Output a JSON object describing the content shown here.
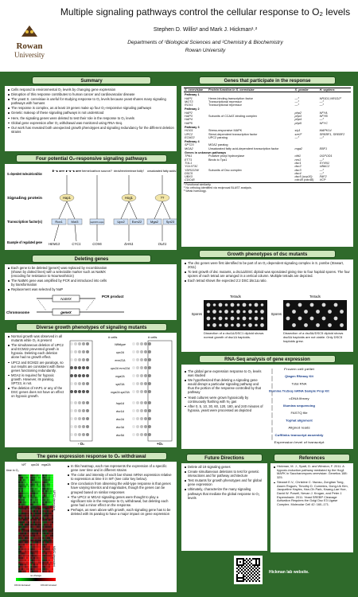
{
  "header": {
    "title": "Multiple signaling pathways control the cellular response to O₂ levels",
    "authors": "Stephen D. Willis² and Mark J. Hickman¹˒²",
    "affiliations": "Departments of ¹Biological Sciences and ²Chemistry & Biochemistry",
    "university": "Rowan University",
    "logo_top": "Rowan",
    "logo_bottom": "University"
  },
  "summary": {
    "heading": "Summary",
    "bullets": [
      "Cells respond to environmental O₂ levels by changing gene expression",
      "Disruption of this response contributes to human cancer and cardiovascular disease",
      "The yeast S. cerevisiae is useful for studying response to O₂ levels because yeast shares many signaling pathways with humans",
      "The response is complex, as at least 19 genes make up four O₂-responsive signaling pathways",
      "Genetic makeup of these signaling pathways is not understood",
      "Here, the signaling genes were deleted to test their role in the response to O₂ levels",
      "Global gene expression after O₂ withdrawal was monitored using RNA-Seq.",
      "Our work has revealed both unexpected growth phenotypes and signaling redundancy for the different deletion strains"
    ]
  },
  "pathways": {
    "heading": "Four potential O₂-responsive signaling pathways",
    "row_labels": [
      "O₂-dependent molecule/condition",
      "Signaling protein",
      "Transcription factor(s)",
      "Example of regulated gene"
    ],
    "molecules": [
      "heme",
      "heme/carbon source?",
      "sterols/heme/membrane fluidity?",
      "unsaturated fatty acids?"
    ],
    "signaling": [
      "Hap1",
      "Hog1",
      "??"
    ],
    "factors": [
      "Rox1",
      "Mot3",
      "Hap2/3/4/5 complex",
      "Upc2",
      "Ecm22",
      "Mga2",
      "Spt23"
    ],
    "genes": [
      "HEM13",
      "CYC1",
      "COX6",
      "DAN1",
      "OLE1"
    ]
  },
  "deleting": {
    "heading": "Deleting genes",
    "bullets": [
      "Each gene to be deleted (geneX) was replaced by recombination (shown by dotted lines) with a selectable marker such as NatMX (encoding for resistance to Nourseothricin)",
      "The NatMX gene was amplified by PCR and introduced into cells by transformation",
      "Replacement was selected by Natᴿ"
    ],
    "marker": "NatMX",
    "pcr": "PCR product",
    "chromosome": "Chromosome",
    "gene": "geneX"
  },
  "growth": {
    "heading": "Diverse growth phenotypes of signaling mutants",
    "bullets": [
      "Normal growth was observed in all mutants while O₂ is present",
      "The simultaneous deletion of UPC2 and ECM22 prevented growth in hypoxia. Deleting each deletion alone had no growth effect.",
      "UPC2 and ECM22 are paralogs, so our results are consistent with these genes functioning redundantly.",
      "MGA2 is required for hypoxic growth. However, its paralog, SPT23, is not.",
      "The deletion of HAP1 or any of the DSC genes does not have an effect on hypoxic growth."
    ],
    "cells_label": "# cells",
    "strains": [
      "Wildtype",
      "upc2Δ",
      "ecm22Δ",
      "upc2Δ ecm22Δ",
      "mga2Δ",
      "spt23Δ",
      "mga2Δ spt23Δ",
      "hap1Δ",
      "dsc1Δ",
      "dsc2Δ",
      "dsc3Δ",
      "dsc5Δ"
    ],
    "minus_o2": "- O₂",
    "plus_o2": "+O₂"
  },
  "expression": {
    "heading": "The gene expression response to O₂ withdrawal",
    "strains": [
      "WT",
      "upc2Δ",
      "mga2Δ"
    ],
    "time_label": "time in O₂",
    "clusters": [
      "UPC2-dependent",
      "MGA2-dependent"
    ],
    "key": [
      "100-fold decreased",
      "no change",
      "100-fold increased"
    ],
    "bullets": [
      "In this heatmap, each row represents the expression of a specific gene over time and in different strains",
      "The color and intensity of each bar shows mRNA expression relative to expression at time 0 in WT (see color key below).",
      "One conclusion from observing the wild-type response is that genes have varying kinetics and magnitudes, though the genes can be grouped based on similar responses",
      "The UPC2 or MGA2 signaling genes were thought to play a significant role in the response to O₂ withdrawal, but deleting each gene had a minor effect on the response.",
      "Perhaps, as seen above with growth, each signaling gene has to be deleted with its paralog to have a major impact on gene expression"
    ]
  },
  "genes_table": {
    "heading": "Genes that participate in the response",
    "columns": [
      "S. cerevisiae",
      "Protein function in S. cerevisiae",
      "S. pombe",
      "H. sapiens"
    ],
    "rows": [
      {
        "group": "Pathway 1"
      },
      {
        "gene": "HAP1",
        "function": "Heme-binding transcription factor",
        "pombe": "—³",
        "human": "NR1D1,NR1D2³"
      },
      {
        "gene": "MOT3",
        "function": "Transcriptional repressor",
        "pombe": "—³",
        "human": "—³"
      },
      {
        "gene": "ROX1",
        "function": "Transcriptional repressor",
        "pombe": "—³",
        "human": "—³"
      },
      {
        "group": "Pathway 2"
      },
      {
        "gene": "HAP2",
        "pombe": "php2",
        "human": "NFYA"
      },
      {
        "gene": "HAP3",
        "function": "Subunits of CCAAT-binding complex",
        "pombe": "php3",
        "human": "NFYB"
      },
      {
        "gene": "HAP4",
        "pombe": "php4",
        "human": "—³"
      },
      {
        "gene": "HAP5",
        "pombe": "php5",
        "human": "NFYC"
      },
      {
        "group": "Pathway 3"
      },
      {
        "gene": "HOG1",
        "function": "Stress-responsive MAPK",
        "pombe": "sty1",
        "human": "MAPK14"
      },
      {
        "gene": "UPC2",
        "function": "Sterol-dependent transcription factor",
        "pombe": "sre1²",
        "human": "SREBF1, SREBF2"
      },
      {
        "gene": "ECM22",
        "function": "UPC2 paralog",
        "pombe": "—³",
        "human": "—³"
      },
      {
        "group": "Pathway 4"
      },
      {
        "gene": "SPT23",
        "function": "MGA2 paralog"
      },
      {
        "gene": "MGA2",
        "function": "Unsaturated fatty acid-dependent transcription factor",
        "pombe": "mga2",
        "human": "EBF1"
      },
      {
        "group": "Genes in unknown pathways"
      },
      {
        "gene": "TPA1",
        "function": "Putative prolyl hydroxylase",
        "pombe": "ofd1",
        "human": "OGFOD1"
      },
      {
        "gene": "ETT1",
        "function": "Binds to Tpa1",
        "pombe": "nro1",
        "human": "—³"
      },
      {
        "gene": "TUL1",
        "pombe": "dsc1",
        "human": "SYVN1"
      },
      {
        "gene": "YOL073C",
        "pombe": "dsc2",
        "human": "UBAC2"
      },
      {
        "gene": "YDR222W",
        "function": "Subunits of Dsc complex",
        "pombe": "dsc3",
        "human": "—³"
      },
      {
        "gene": "DSC5",
        "pombe": "dsc4",
        "human": "—³"
      },
      {
        "gene": "UBX3",
        "pombe": "dsc5 (ucp10)",
        "human": "FAF2"
      },
      {
        "gene": "CDC48",
        "pombe": "cdc48 (cdc48)",
        "human": "VCP"
      }
    ],
    "footnotes": [
      "¹ Functional similarity.",
      "² No ortholog identified via reciprocal BLAST analysis.",
      "³ Weak homology."
    ]
  },
  "dsc": {
    "heading": "Growth phenotypes of dsc mutants",
    "bullets": [
      "The dsc genes were first identified to be part of an O₂-dependent signaling complex in S. pombe (Stewart, 2011)",
      "To test growth of dsc mutants, a dsc1Δ/DSC diploid was sporulated giving rise to four haploid spores. The four spores of each tetrad are arranged in a vertical column. Multiple tetrads are depicted.",
      "Each tetrad shows the expected 2:2 DSC:dsc1Δ ratio."
    ],
    "tetrads": "Tetrads",
    "spores": "Spores",
    "captions": [
      "Dissection of a dsc1Δ/DSC1 diploid shows normal growth of dsc1Δ haploids.",
      "Dissection of a dsc5Δ/DSC5 diploid shows dsc5Δ haploids are not viable. Only DSC5 haploids grew."
    ]
  },
  "rnaseq": {
    "heading": "RNA-Seq analysis of gene expression",
    "bullets": [
      "The global gene expression response to O₂ levels was studied",
      "We hypothesized that deleting a signaling gene would disrupt a particular signaling pathway and thus the portion of the response controlled by that pathway",
      "Yeast cultures were grown hypoxically by continuously flushing with N₂ gas",
      "After 0, 5, 10, 30, 60, 120, 180, and 240 minutes of hypoxia, yeast were processed as depicted"
    ],
    "flow": [
      "Frozen cell pellet",
      "Qiagen RNeasy Kit",
      "Total RNA",
      "Illumina TruSeq mRNA Sample Prep Kit",
      "cDNA library",
      "Illumina sequencing",
      "FASTQ file",
      "Tophat alignment",
      "Aligned reads",
      "Cufflinks transcript assembly",
      "Expression level of transcript"
    ]
  },
  "future": {
    "heading": "Future Directions",
    "bullets": [
      "Delete all 19 signaling genes",
      "Create simultaneous deletions to test for genetic interactions and for pathway architecture",
      "Test mutants for growth phenotypes and for global gene expression",
      "Ultimately, characterize the many signaling pathways that mediate the global response to O₂ levels"
    ]
  },
  "references": {
    "heading": "References",
    "bullets": [
      "Hickman, M. J., Spatt, D. and Winston, F. 2011. A hypoxic-induction pathway mediated by the Hog1 MAPK in Saccharomyces cerevisiae. Genetics 188: 325.",
      "Stewart E.V., Christine C. Nwosu, Zongtian Tong, Assen Roguev, Timothy D. Cummins, Dong-Uk Kim, Jacqueline Hayles, Han-Oh Park, Kwang-Lae Hoe, David W. Powell, Nevan J. Krogan, and Peter J. Espenshade. 2011. Yeast SREBP Cleavage Activation Requires the Golgi Dsc E3 Ligase Complex. Molecular Cell 42: 160–171."
    ],
    "website": "Hickman lab website."
  }
}
